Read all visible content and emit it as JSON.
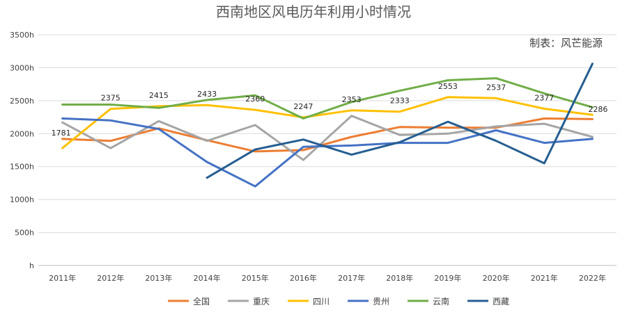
{
  "chart_data": {
    "type": "line",
    "title": "西南地区风电历年利用小时情况",
    "note": "制表：风芒能源",
    "xlabel": "",
    "ylabel": "",
    "categories": [
      "2011年",
      "2012年",
      "2013年",
      "2014年",
      "2015年",
      "2016年",
      "2017年",
      "2018年",
      "2019年",
      "2020年",
      "2021年",
      "2022年"
    ],
    "ylim": [
      0,
      3500
    ],
    "yticks": [
      {
        "value": 0,
        "label": "h"
      },
      {
        "value": 500,
        "label": "500h"
      },
      {
        "value": 1000,
        "label": "1000h"
      },
      {
        "value": 1500,
        "label": "1500h"
      },
      {
        "value": 2000,
        "label": "2000h"
      },
      {
        "value": 2500,
        "label": "2500h"
      },
      {
        "value": 3000,
        "label": "3000h"
      },
      {
        "value": 3500,
        "label": "3500h"
      }
    ],
    "grid": true,
    "legend_position": "bottom",
    "series": [
      {
        "name": "全国",
        "color": "#ED7D31",
        "values": [
          1920,
          1890,
          2080,
          1900,
          1730,
          1750,
          1950,
          2100,
          2090,
          2090,
          2230,
          2220
        ]
      },
      {
        "name": "重庆",
        "color": "#A5A5A5",
        "values": [
          2170,
          1780,
          2190,
          1890,
          2130,
          1600,
          2270,
          1980,
          2000,
          2110,
          2150,
          1950
        ]
      },
      {
        "name": "四川",
        "color": "#FFC000",
        "values": [
          1781,
          2375,
          2415,
          2433,
          2360,
          2247,
          2353,
          2333,
          2553,
          2537,
          2377,
          2286
        ]
      },
      {
        "name": "贵州",
        "color": "#4472C4",
        "values": [
          2230,
          2200,
          2070,
          1570,
          1200,
          1800,
          1820,
          1860,
          1860,
          2050,
          1860,
          1920
        ]
      },
      {
        "name": "云南",
        "color": "#70AD47",
        "values": [
          2440,
          2440,
          2390,
          2510,
          2580,
          2230,
          2480,
          2650,
          2810,
          2840,
          2610,
          2400
        ]
      },
      {
        "name": "西藏",
        "color": "#255E91",
        "values": [
          null,
          null,
          null,
          1330,
          1760,
          1910,
          1680,
          1870,
          2180,
          1890,
          1550,
          3060
        ]
      }
    ],
    "data_labels": {
      "series": "四川",
      "labels": [
        "1781",
        "2375",
        "2415",
        "2433",
        "2360",
        "2247",
        "2353",
        "2333",
        "2553",
        "2537",
        "2377",
        "2286"
      ]
    }
  }
}
